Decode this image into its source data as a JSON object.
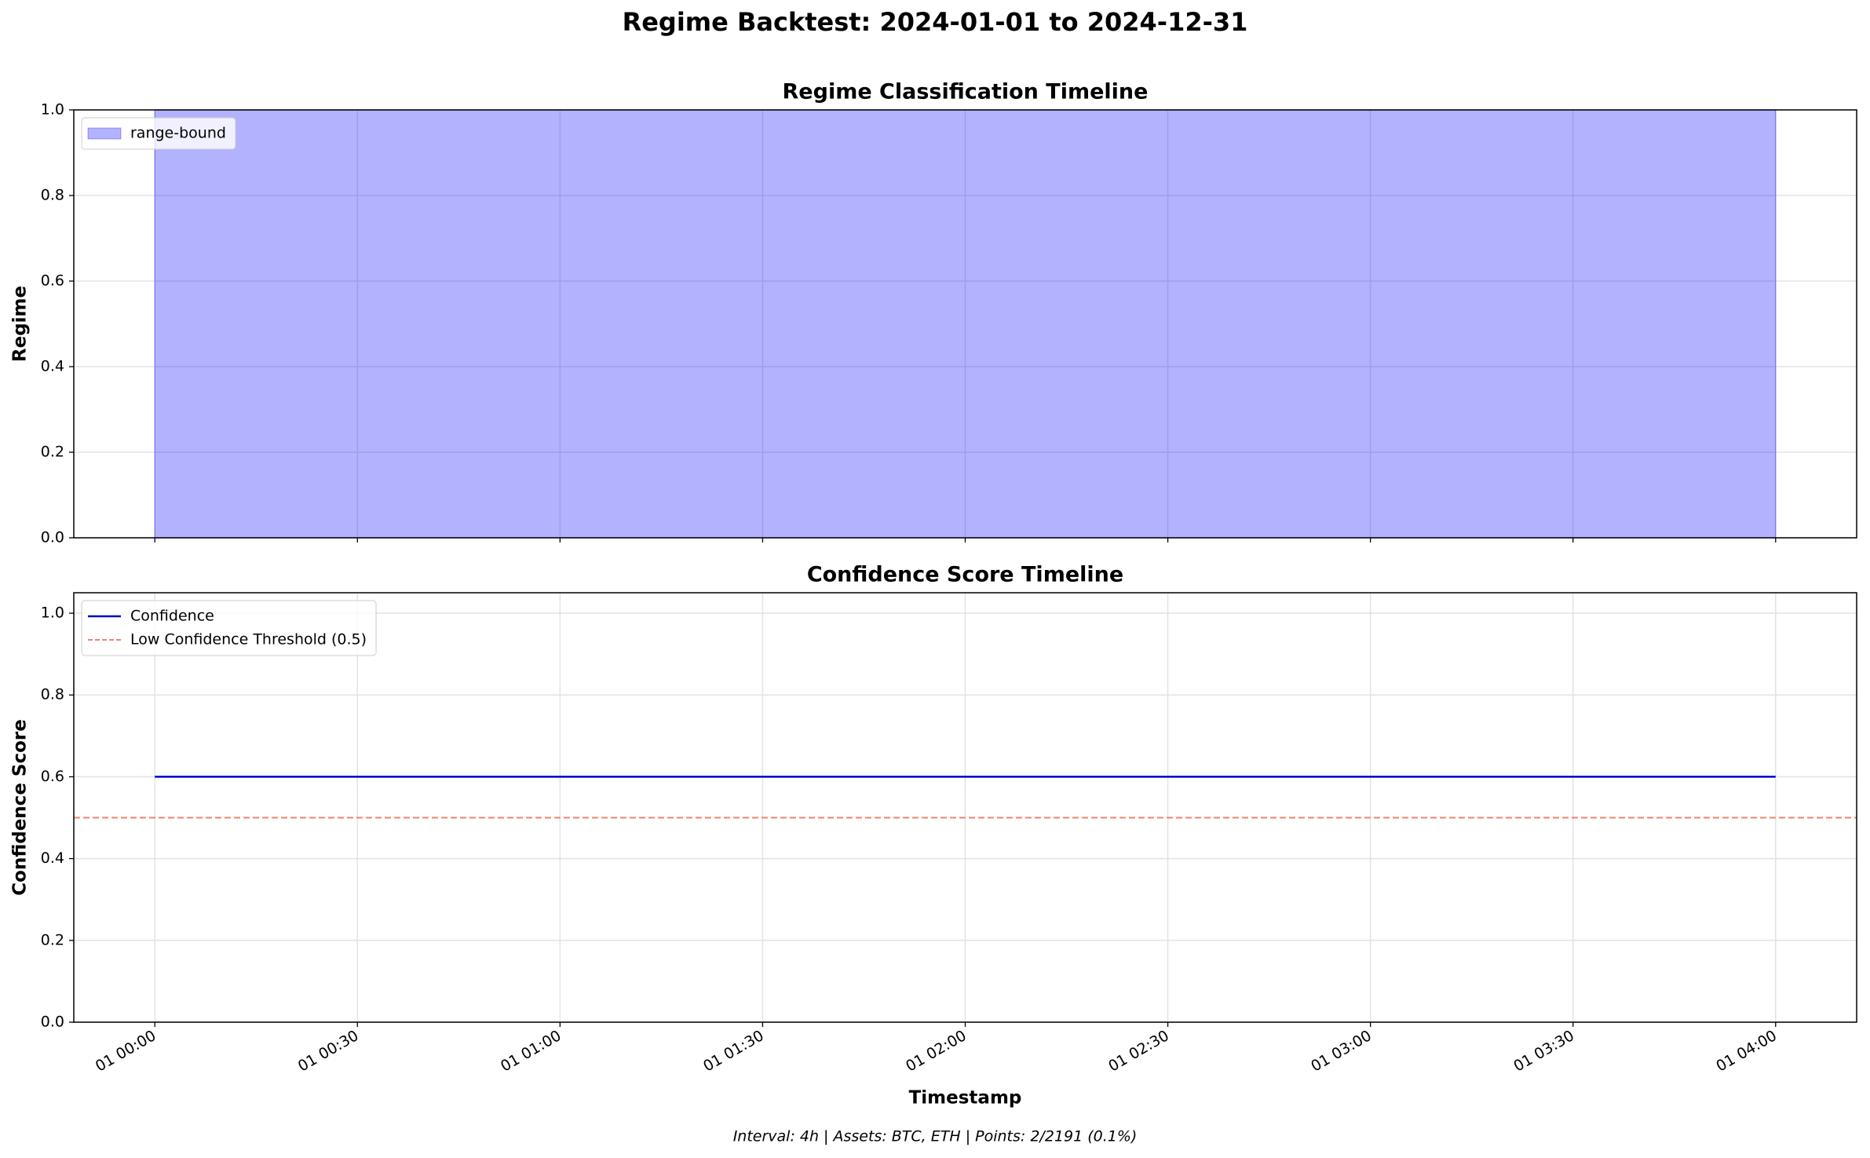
{
  "title": "Regime Backtest: 2024-01-01 to 2024-12-31",
  "footer": "Interval: 4h | Assets: BTC, ETH | Points: 2/2191 (0.1%)",
  "chart_data": [
    {
      "type": "area",
      "title": "Regime Classification Timeline",
      "ylabel": "Regime",
      "sharex": true,
      "x": [
        0,
        240
      ],
      "series": [
        {
          "name": "range-bound",
          "color": "#0000ff",
          "values": [
            1,
            1
          ]
        }
      ],
      "ylim": [
        0,
        1
      ],
      "yticks": [
        {
          "value": 0,
          "label": "0.0"
        },
        {
          "value": 0.2,
          "label": "0.2"
        },
        {
          "value": 0.4,
          "label": "0.4"
        },
        {
          "value": 0.6,
          "label": "0.6"
        },
        {
          "value": 0.8,
          "label": "0.8"
        },
        {
          "value": 1,
          "label": "1.0"
        }
      ],
      "grid": true,
      "legend": "upper-left"
    },
    {
      "type": "line",
      "title": "Confidence Score Timeline",
      "ylabel": "Confidence Score",
      "xlabel": "Timestamp",
      "x": [
        0,
        240
      ],
      "series": [
        {
          "name": "Confidence",
          "color": "#0000cd",
          "values": [
            0.6,
            0.6
          ]
        }
      ],
      "threshold": {
        "name": "Low Confidence Threshold (0.5)",
        "value": 0.5,
        "color": "#f08070"
      },
      "xlim": [
        -12,
        252
      ],
      "xticks": [
        {
          "value": 0,
          "label": "01 00:00"
        },
        {
          "value": 30,
          "label": "01 00:30"
        },
        {
          "value": 60,
          "label": "01 01:00"
        },
        {
          "value": 90,
          "label": "01 01:30"
        },
        {
          "value": 120,
          "label": "01 02:00"
        },
        {
          "value": 150,
          "label": "01 02:30"
        },
        {
          "value": 180,
          "label": "01 03:00"
        },
        {
          "value": 210,
          "label": "01 03:30"
        },
        {
          "value": 240,
          "label": "01 04:00"
        }
      ],
      "ylim": [
        0,
        1.05
      ],
      "yticks": [
        {
          "value": 0,
          "label": "0.0"
        },
        {
          "value": 0.2,
          "label": "0.2"
        },
        {
          "value": 0.4,
          "label": "0.4"
        },
        {
          "value": 0.6,
          "label": "0.6"
        },
        {
          "value": 0.8,
          "label": "0.8"
        },
        {
          "value": 1,
          "label": "1.0"
        }
      ],
      "grid": true,
      "legend": "upper-left"
    }
  ]
}
